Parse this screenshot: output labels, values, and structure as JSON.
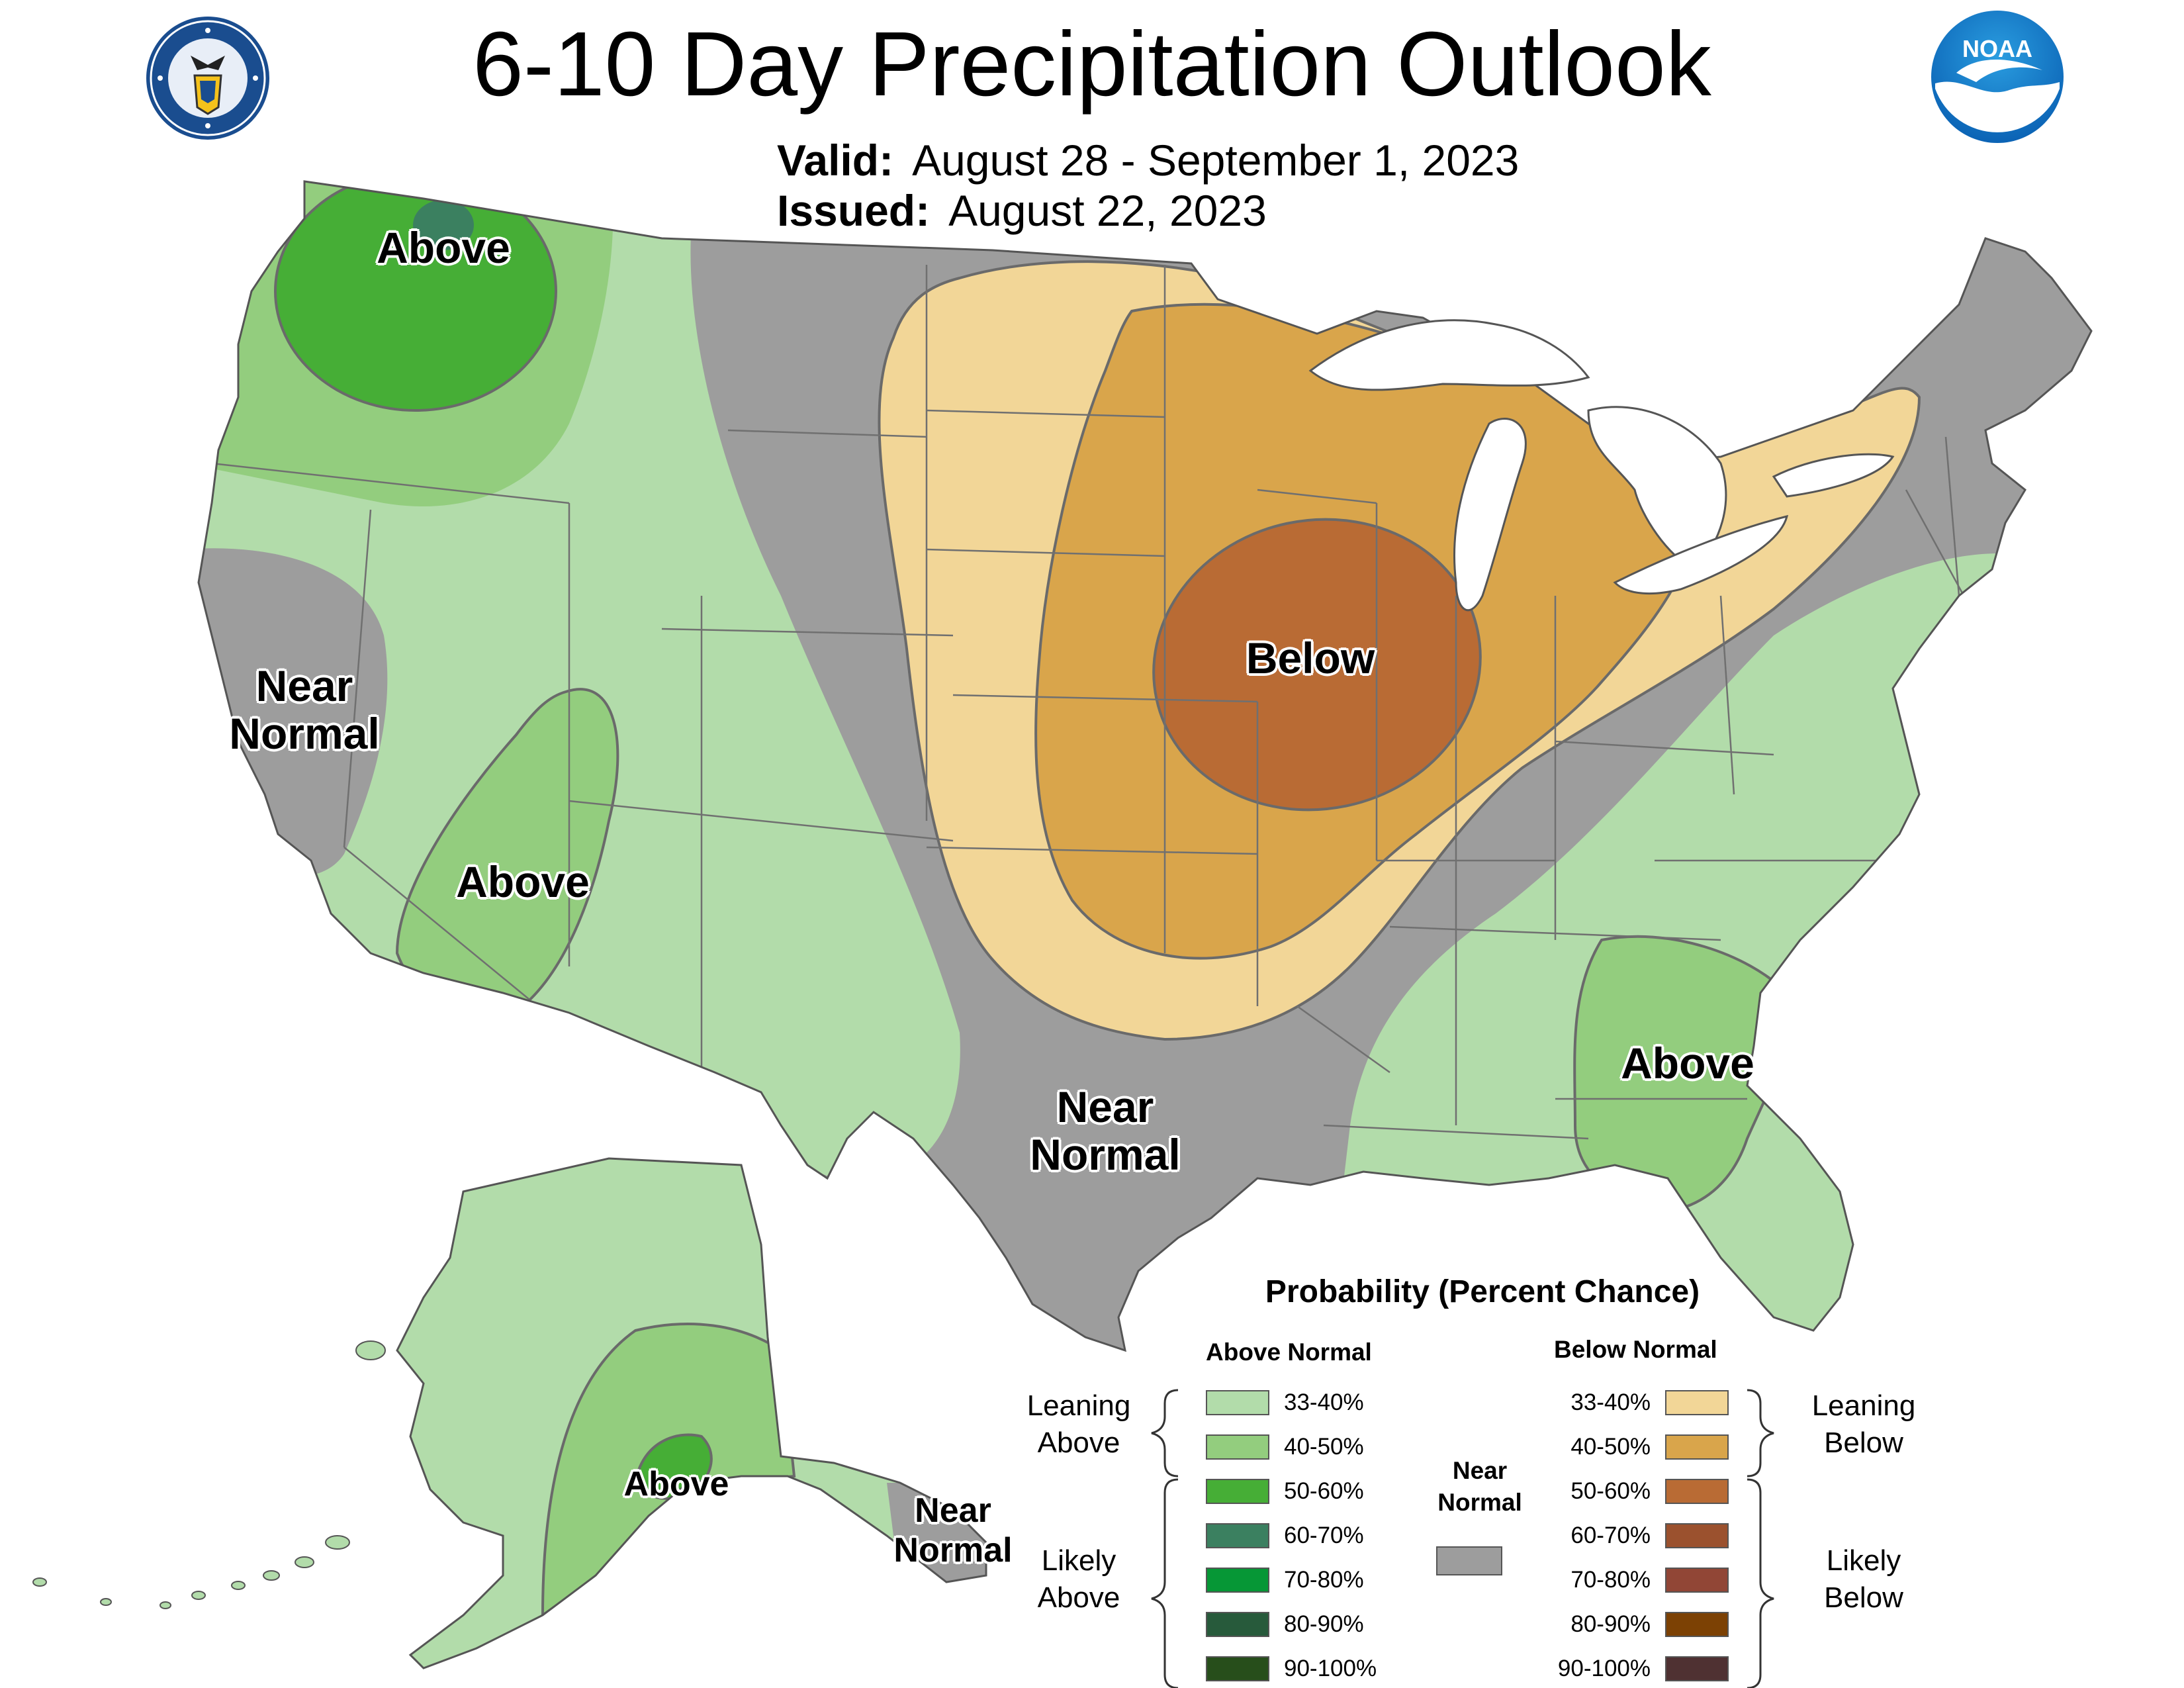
{
  "header": {
    "title": "6-10 Day Precipitation Outlook",
    "valid_label": "Valid:",
    "valid_value": "August 28 - September 1, 2023",
    "issued_label": "Issued:",
    "issued_value": "August 22, 2023"
  },
  "logos": {
    "seal_icon": "department-of-commerce-seal-icon",
    "noaa_icon": "noaa-logo-icon",
    "noaa_text": "NOAA"
  },
  "region_labels": {
    "pacific_northwest": "Above",
    "california": [
      "Near",
      "Normal"
    ],
    "great_basin": "Above",
    "midwest": "Below",
    "southern_plains": [
      "Near",
      "Normal"
    ],
    "southeast": "Above",
    "alaska": "Above",
    "southeast_alaska": [
      "Near",
      "Normal"
    ]
  },
  "legend": {
    "title": "Probability (Percent Chance)",
    "above_header": "Above Normal",
    "below_header": "Below Normal",
    "leaning_above": [
      "Leaning",
      "Above"
    ],
    "likely_above": [
      "Likely",
      "Above"
    ],
    "leaning_below": [
      "Leaning",
      "Below"
    ],
    "likely_below": [
      "Likely",
      "Below"
    ],
    "near_normal": [
      "Near",
      "Normal"
    ],
    "near_normal_color": "#9d9d9d",
    "above": [
      {
        "range": "33-40%",
        "color": "#b2dcaa"
      },
      {
        "range": "40-50%",
        "color": "#93cd7e"
      },
      {
        "range": "50-60%",
        "color": "#46ae36"
      },
      {
        "range": "60-70%",
        "color": "#3b8060"
      },
      {
        "range": "70-80%",
        "color": "#069736"
      },
      {
        "range": "80-90%",
        "color": "#275a3b"
      },
      {
        "range": "90-100%",
        "color": "#274e1b"
      }
    ],
    "below": [
      {
        "range": "33-40%",
        "color": "#f2d697"
      },
      {
        "range": "40-50%",
        "color": "#d9a54b"
      },
      {
        "range": "50-60%",
        "color": "#b96b34"
      },
      {
        "range": "60-70%",
        "color": "#9b512e"
      },
      {
        "range": "70-80%",
        "color": "#914636"
      },
      {
        "range": "80-90%",
        "color": "#7c4104"
      },
      {
        "range": "90-100%",
        "color": "#4f3132"
      }
    ]
  }
}
